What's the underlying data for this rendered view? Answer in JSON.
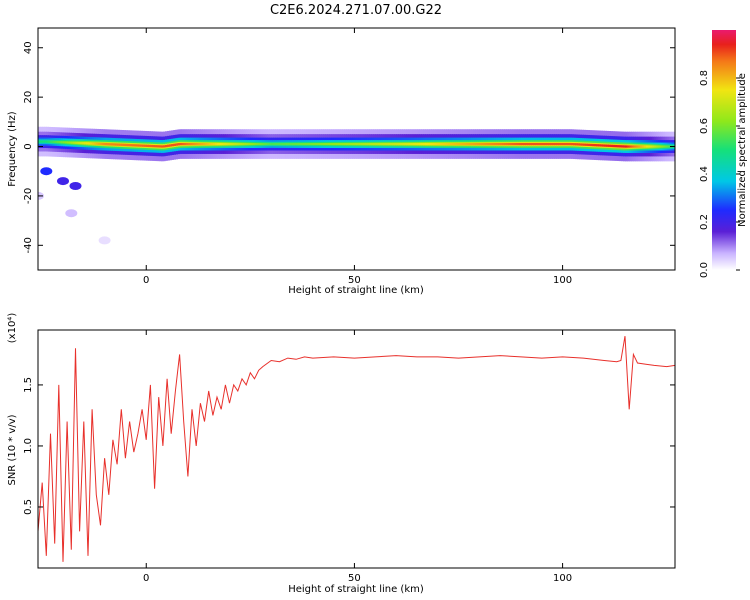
{
  "title": "C2E6.2024.271.07.00.G22",
  "colors": {
    "signal": "#e8302b",
    "axis": "#000000",
    "background": "#ffffff"
  },
  "chart_data": [
    {
      "type": "heatmap",
      "xlabel": "Height of straight line (km)",
      "ylabel": "Frequency (Hz)",
      "xlim": [
        -26,
        127
      ],
      "ylim": [
        -50,
        48
      ],
      "x_ticks": [
        0,
        50,
        100
      ],
      "y_ticks": [
        40,
        20,
        0,
        -20,
        -40
      ],
      "x_tick_labels": [
        "0",
        "50",
        "100"
      ],
      "y_tick_labels": [
        "40",
        "20",
        "0",
        "-20",
        "-40"
      ],
      "colorbar": {
        "label": "Normalized spectral amplitude",
        "range": [
          0,
          1
        ],
        "ticks": [
          0.0,
          0.2,
          0.4,
          0.6,
          0.8
        ],
        "tick_labels": [
          "0.0",
          "0.2",
          "0.4",
          "0.6",
          "0.8"
        ],
        "colormap": "rainbow"
      },
      "ridge": {
        "frequency_hz": 1,
        "description_points": [
          {
            "x": -24,
            "y": 2,
            "amp": 0.5
          },
          {
            "x": -10,
            "y": 1,
            "amp": 0.85
          },
          {
            "x": 4,
            "y": 0,
            "amp": 0.9
          },
          {
            "x": 8,
            "y": 1,
            "amp": 0.9
          },
          {
            "x": 30,
            "y": 1,
            "amp": 0.55
          },
          {
            "x": 60,
            "y": 1,
            "amp": 0.7
          },
          {
            "x": 90,
            "y": 1,
            "amp": 0.9
          },
          {
            "x": 102,
            "y": 1,
            "amp": 0.9
          },
          {
            "x": 115,
            "y": 0,
            "amp": 0.95
          },
          {
            "x": 127,
            "y": 0,
            "amp": 0.5
          }
        ]
      },
      "scatter_blobs": [
        {
          "x": -24,
          "y": -10,
          "amp": 0.25
        },
        {
          "x": -20,
          "y": -14,
          "amp": 0.2
        },
        {
          "x": -17,
          "y": -16,
          "amp": 0.2
        },
        {
          "x": -18,
          "y": -27,
          "amp": 0.06
        },
        {
          "x": -10,
          "y": -38,
          "amp": 0.03
        },
        {
          "x": -26,
          "y": -20,
          "amp": 0.05
        }
      ]
    },
    {
      "type": "line",
      "xlabel": "Height of straight line (km)",
      "ylabel": "SNR (10 * v/v)",
      "y_multiplier_label": "(x10⁴)",
      "xlim": [
        -26,
        127
      ],
      "ylim": [
        0,
        1.95
      ],
      "x_ticks": [
        0,
        50,
        100
      ],
      "y_ticks": [
        0.5,
        1.0,
        1.5
      ],
      "x_tick_labels": [
        "0",
        "50",
        "100"
      ],
      "y_tick_labels": [
        "0.5",
        "1.0",
        "1.5"
      ],
      "series": [
        {
          "x": [
            -26,
            -25,
            -24,
            -23,
            -22,
            -21,
            -20,
            -19,
            -18,
            -17,
            -16,
            -15,
            -14,
            -13,
            -12,
            -11,
            -10,
            -9,
            -8,
            -7,
            -6,
            -5,
            -4,
            -3,
            -2,
            -1,
            0,
            1,
            2,
            3,
            4,
            5,
            6,
            7,
            8,
            9,
            10,
            11,
            12,
            13,
            14,
            15,
            16,
            17,
            18,
            19,
            20,
            21,
            22,
            23,
            24,
            25,
            26,
            27,
            28,
            30,
            32,
            34,
            36,
            38,
            40,
            45,
            50,
            55,
            60,
            65,
            70,
            75,
            80,
            85,
            90,
            95,
            100,
            105,
            110,
            113,
            114,
            115,
            116,
            117,
            118,
            120,
            122,
            125,
            127
          ],
          "y": [
            0.3,
            0.7,
            0.1,
            1.1,
            0.2,
            1.5,
            0.05,
            1.2,
            0.15,
            1.8,
            0.3,
            1.2,
            0.1,
            1.3,
            0.6,
            0.35,
            0.9,
            0.6,
            1.05,
            0.85,
            1.3,
            0.9,
            1.2,
            0.95,
            1.1,
            1.3,
            1.05,
            1.5,
            0.65,
            1.4,
            1.0,
            1.55,
            1.1,
            1.45,
            1.75,
            1.2,
            0.75,
            1.3,
            1.0,
            1.35,
            1.2,
            1.45,
            1.25,
            1.4,
            1.3,
            1.5,
            1.35,
            1.5,
            1.45,
            1.55,
            1.5,
            1.6,
            1.55,
            1.62,
            1.65,
            1.7,
            1.69,
            1.72,
            1.71,
            1.73,
            1.72,
            1.73,
            1.72,
            1.73,
            1.74,
            1.73,
            1.73,
            1.72,
            1.73,
            1.74,
            1.73,
            1.72,
            1.73,
            1.72,
            1.7,
            1.69,
            1.7,
            1.9,
            1.3,
            1.75,
            1.68,
            1.67,
            1.66,
            1.65,
            1.66
          ]
        }
      ]
    }
  ]
}
